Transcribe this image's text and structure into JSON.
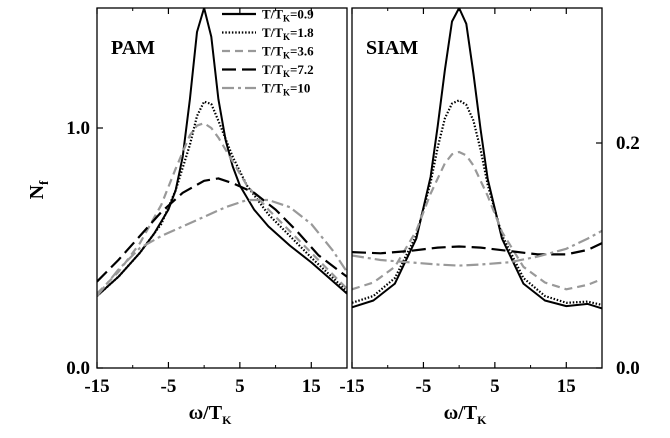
{
  "chart_data": [
    {
      "type": "line",
      "title": "PAM",
      "xlabel": "ω/T",
      "xlabel_sub": "K",
      "ylabel": "N",
      "ylabel_sub": "f",
      "xlim": [
        -15,
        20
      ],
      "ylim": [
        0,
        1.5
      ],
      "xticks": [
        -15,
        -5,
        5,
        15
      ],
      "xtick_labels": [
        "-15",
        "-5",
        "5",
        "15"
      ],
      "yticks": [
        0,
        1
      ],
      "ytick_labels": [
        "0.0",
        "1.0"
      ],
      "grid": false,
      "legend_position": "top-right",
      "series": [
        {
          "legend": "T/T",
          "legend_sub": "K",
          "legend_suffix": "=0.9",
          "color": "#000000",
          "dash": "solid",
          "x": [
            -15,
            -12,
            -9,
            -7,
            -5,
            -4,
            -3,
            -2,
            -1,
            0,
            1,
            2,
            3,
            4,
            5,
            7,
            9,
            12,
            15,
            20
          ],
          "y": [
            0.3,
            0.38,
            0.48,
            0.56,
            0.66,
            0.74,
            0.88,
            1.12,
            1.4,
            1.5,
            1.38,
            1.12,
            0.95,
            0.84,
            0.76,
            0.66,
            0.59,
            0.51,
            0.44,
            0.31
          ]
        },
        {
          "legend": "T/T",
          "legend_sub": "K",
          "legend_suffix": "=1.8",
          "color": "#000000",
          "dash": "dotted",
          "x": [
            -15,
            -12,
            -9,
            -6,
            -4,
            -2,
            -1,
            0,
            1,
            2,
            4,
            6,
            9,
            12,
            15,
            20
          ],
          "y": [
            0.3,
            0.38,
            0.48,
            0.6,
            0.74,
            0.93,
            1.05,
            1.11,
            1.1,
            1.03,
            0.88,
            0.76,
            0.64,
            0.55,
            0.46,
            0.32
          ]
        },
        {
          "legend": "T/T",
          "legend_sub": "K",
          "legend_suffix": "=3.6",
          "color": "#999999",
          "dash": "dashed",
          "x": [
            -15,
            -12,
            -9,
            -6,
            -4,
            -2,
            -1,
            0,
            1,
            2,
            4,
            6,
            9,
            12,
            15,
            20
          ],
          "y": [
            0.31,
            0.4,
            0.52,
            0.68,
            0.83,
            0.97,
            1.01,
            1.02,
            1.0,
            0.96,
            0.86,
            0.76,
            0.66,
            0.57,
            0.48,
            0.33
          ]
        },
        {
          "legend": "T/T",
          "legend_sub": "K",
          "legend_suffix": "=7.2",
          "color": "#000000",
          "dash": "longdash",
          "x": [
            -15,
            -12,
            -9,
            -6,
            -3,
            0,
            2,
            4,
            7,
            10,
            13,
            16,
            20
          ],
          "y": [
            0.36,
            0.45,
            0.55,
            0.65,
            0.73,
            0.78,
            0.79,
            0.77,
            0.73,
            0.66,
            0.57,
            0.47,
            0.38
          ]
        },
        {
          "legend": "T/T",
          "legend_sub": "K",
          "legend_suffix": "=10",
          "color": "#999999",
          "dash": "dashdot",
          "x": [
            -15,
            -12,
            -9,
            -6,
            -3,
            0,
            3,
            6,
            9,
            12,
            15,
            18,
            20
          ],
          "y": [
            0.3,
            0.41,
            0.5,
            0.55,
            0.59,
            0.63,
            0.67,
            0.7,
            0.7,
            0.67,
            0.6,
            0.49,
            0.4
          ]
        }
      ]
    },
    {
      "type": "line",
      "title": "SIAM",
      "xlabel": "ω/T",
      "xlabel_sub": "K",
      "xlim": [
        -15,
        20
      ],
      "ylim": [
        0,
        0.32
      ],
      "xticks": [
        -15,
        -5,
        5,
        15
      ],
      "xtick_labels": [
        "-15",
        "-5",
        "5",
        "15"
      ],
      "yticks": [
        0,
        0.2
      ],
      "ytick_labels": [
        "0.0",
        "0.2"
      ],
      "grid": false,
      "series": [
        {
          "color": "#000000",
          "dash": "solid",
          "x": [
            -15,
            -12,
            -9,
            -6,
            -4,
            -3,
            -2,
            -1,
            0,
            1,
            2,
            3,
            4,
            6,
            9,
            12,
            15,
            18,
            20
          ],
          "y": [
            0.054,
            0.06,
            0.075,
            0.115,
            0.17,
            0.215,
            0.265,
            0.308,
            0.32,
            0.306,
            0.262,
            0.212,
            0.168,
            0.115,
            0.075,
            0.06,
            0.055,
            0.057,
            0.053
          ]
        },
        {
          "color": "#000000",
          "dash": "dotted",
          "x": [
            -15,
            -12,
            -9,
            -6,
            -4,
            -3,
            -2,
            -1,
            0,
            1,
            2,
            3,
            4,
            6,
            9,
            12,
            15,
            18,
            20
          ],
          "y": [
            0.058,
            0.064,
            0.08,
            0.118,
            0.165,
            0.196,
            0.222,
            0.235,
            0.238,
            0.234,
            0.22,
            0.194,
            0.163,
            0.118,
            0.08,
            0.064,
            0.058,
            0.059,
            0.056
          ]
        },
        {
          "color": "#999999",
          "dash": "dashed",
          "x": [
            -15,
            -12,
            -9,
            -6,
            -4,
            -2,
            -1,
            0,
            1,
            2,
            4,
            6,
            9,
            12,
            15,
            18,
            20
          ],
          "y": [
            0.07,
            0.076,
            0.09,
            0.122,
            0.155,
            0.182,
            0.19,
            0.192,
            0.189,
            0.18,
            0.153,
            0.121,
            0.09,
            0.076,
            0.07,
            0.074,
            0.079
          ]
        },
        {
          "color": "#000000",
          "dash": "longdash",
          "x": [
            -15,
            -11,
            -7,
            -3,
            0,
            3,
            7,
            11,
            15,
            18,
            20
          ],
          "y": [
            0.103,
            0.102,
            0.104,
            0.107,
            0.108,
            0.107,
            0.104,
            0.101,
            0.101,
            0.105,
            0.111
          ]
        },
        {
          "color": "#999999",
          "dash": "dashdot",
          "x": [
            -15,
            -11,
            -7,
            -3,
            0,
            3,
            7,
            11,
            15,
            18,
            20
          ],
          "y": [
            0.1,
            0.096,
            0.094,
            0.092,
            0.091,
            0.092,
            0.094,
            0.099,
            0.106,
            0.115,
            0.122
          ]
        }
      ]
    }
  ]
}
